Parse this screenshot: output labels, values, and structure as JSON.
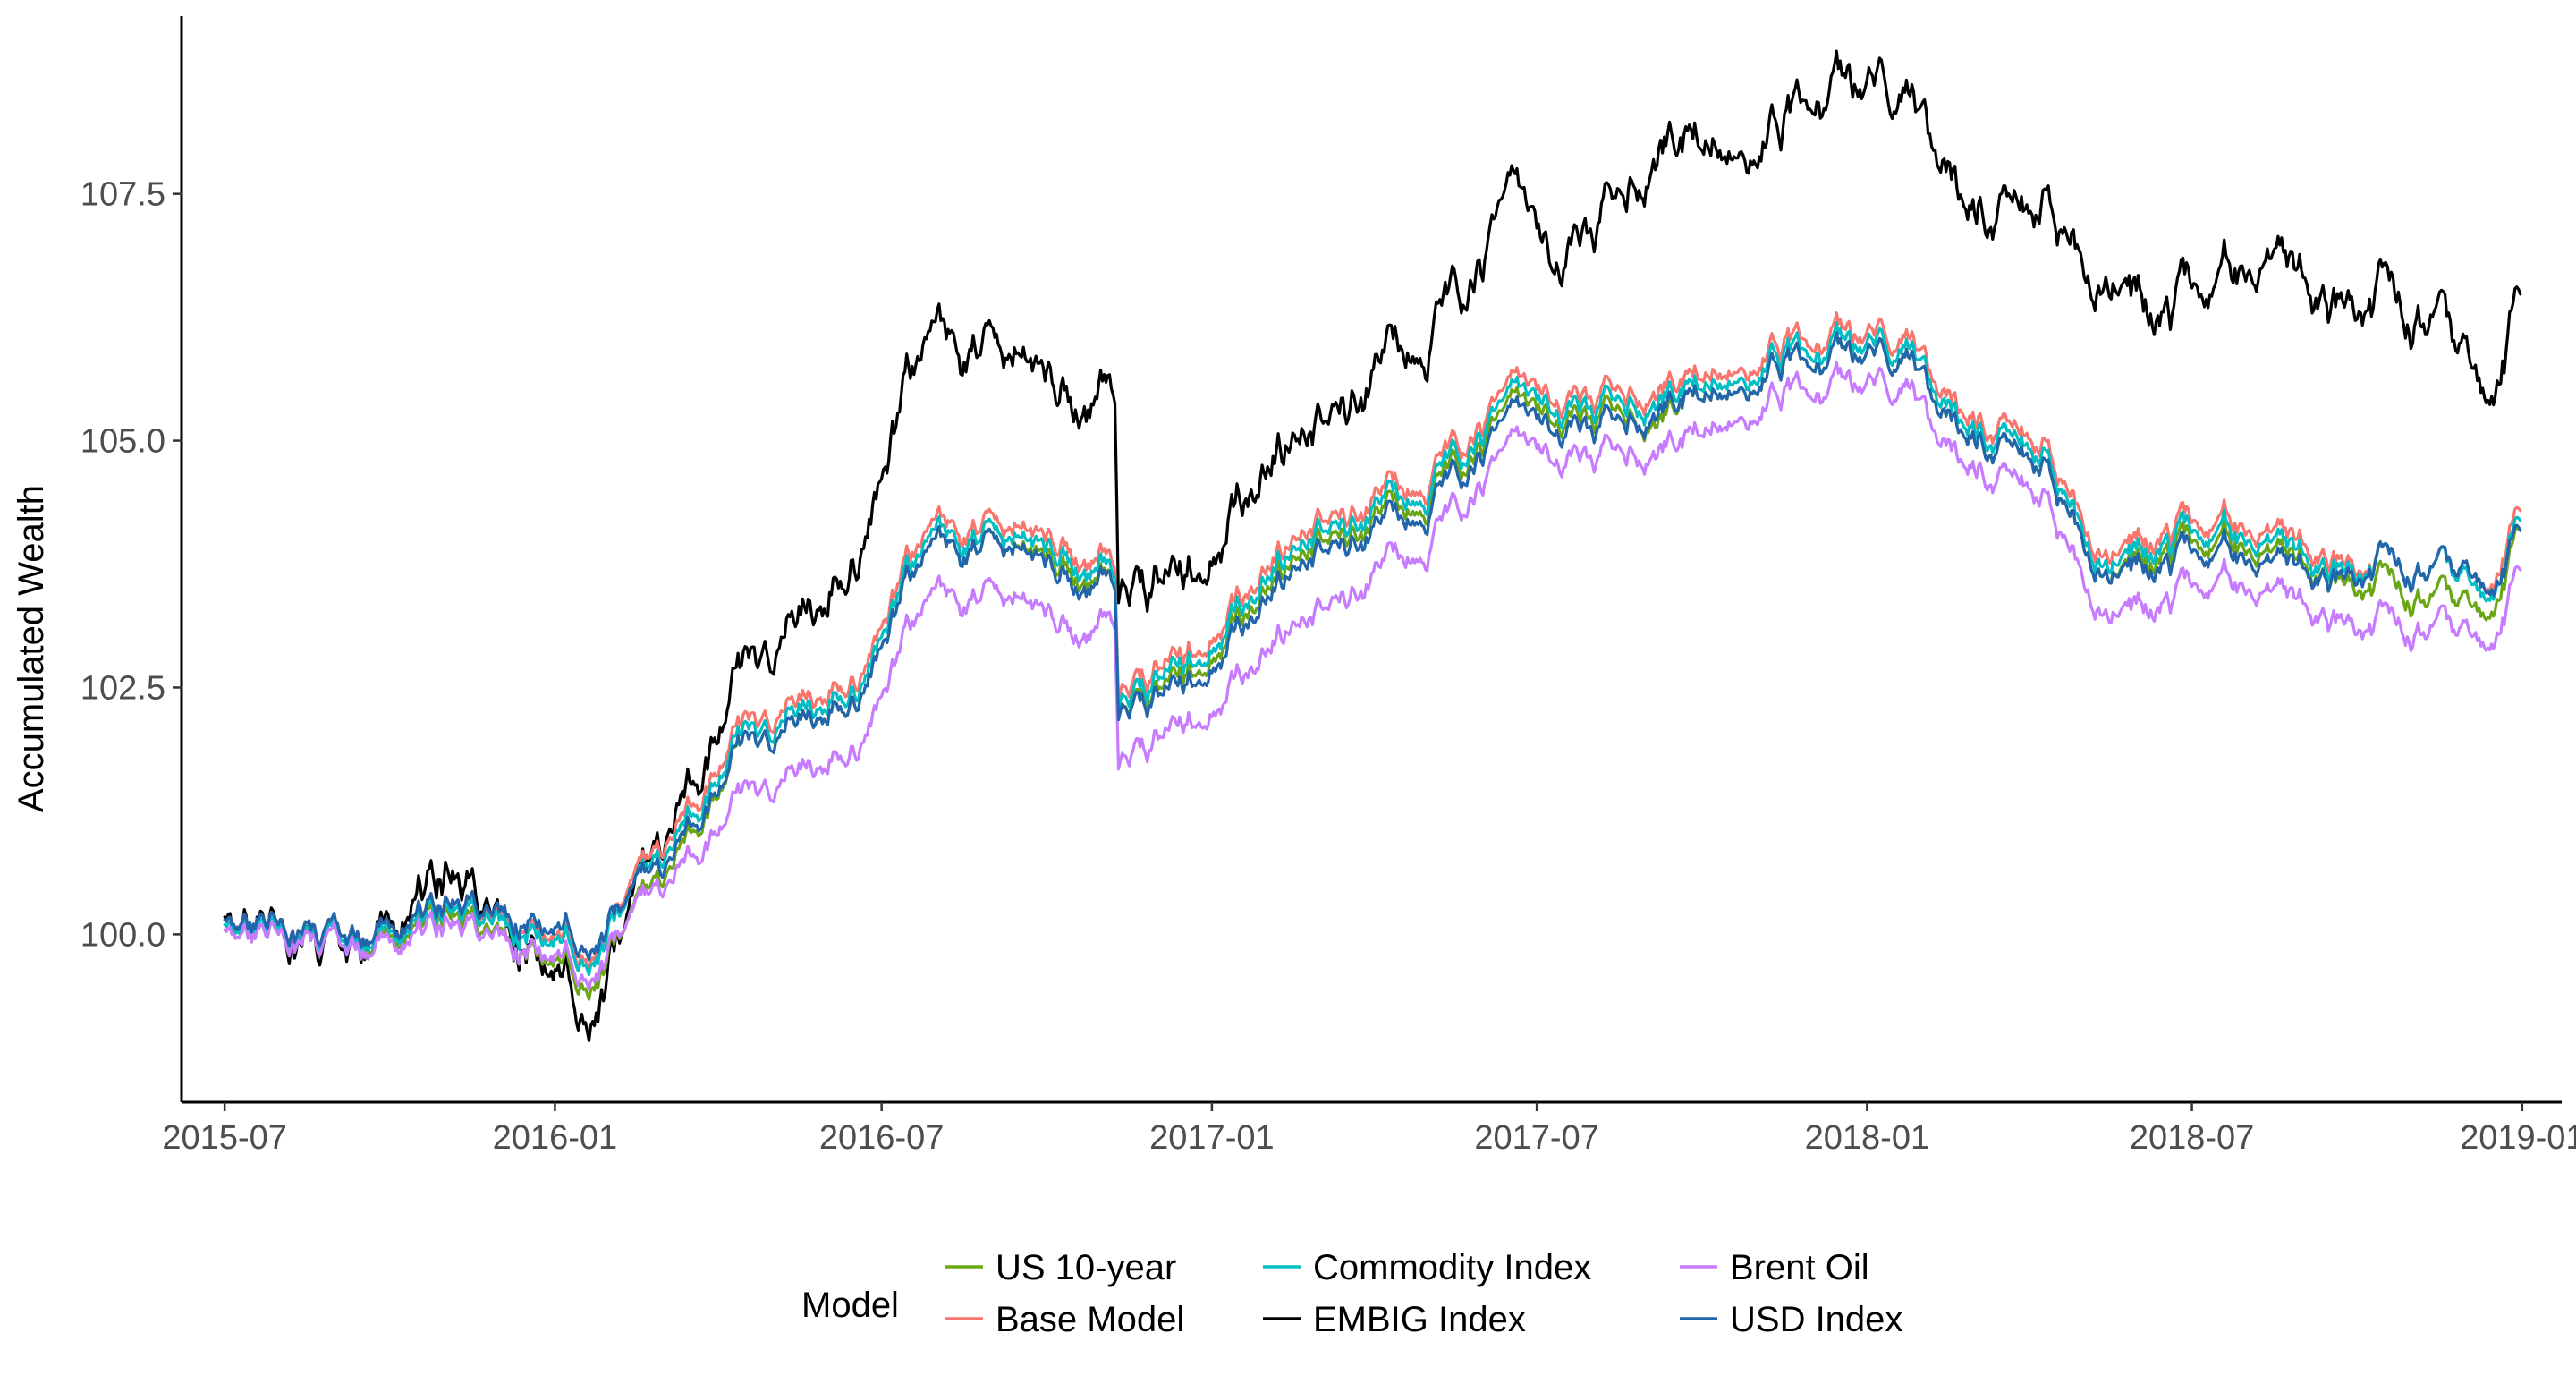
{
  "chart_data": {
    "type": "line",
    "title": "",
    "xlabel": "",
    "ylabel": "Accumulated Wealth",
    "x_start": "2015-07-01",
    "x_end": "2018-12-31",
    "x_ticks": [
      "2015-07",
      "2016-01",
      "2016-07",
      "2017-01",
      "2017-07",
      "2018-01",
      "2018-07",
      "2019-01"
    ],
    "x_tick_dates": [
      "2015-07-01",
      "2016-01-01",
      "2016-07-01",
      "2017-01-01",
      "2017-07-01",
      "2018-01-01",
      "2018-07-01",
      "2019-01-01"
    ],
    "xlim": [
      "2015-06-07",
      "2019-01-23"
    ],
    "y_ticks": [
      100.0,
      102.5,
      105.0,
      107.5
    ],
    "y_tick_labels": [
      "100.0",
      "102.5",
      "105.0",
      "107.5"
    ],
    "ylim": [
      98.3,
      109.3
    ],
    "grid": false,
    "legend": {
      "title": "Model",
      "placement": "bottom",
      "entries": [
        "US 10-year",
        "Base Model",
        "Commodity Index",
        "EMBIG Index",
        "Brent Oil",
        "USD Index"
      ]
    },
    "key_dates": [
      "2015-07-01",
      "2015-09-01",
      "2015-11-01",
      "2016-01-20",
      "2016-03-01",
      "2016-04-15",
      "2016-06-01",
      "2016-06-20",
      "2016-07-15",
      "2016-08-10",
      "2016-09-10",
      "2016-10-15",
      "2016-11-08",
      "2016-11-10",
      "2016-12-15",
      "2017-01-20",
      "2017-03-01",
      "2017-04-15",
      "2017-06-01",
      "2017-06-15",
      "2017-07-10",
      "2017-08-15",
      "2017-09-08",
      "2017-09-20",
      "2017-10-20",
      "2017-11-15",
      "2017-12-01",
      "2018-01-10",
      "2018-01-26",
      "2018-02-10",
      "2018-03-01",
      "2018-04-01",
      "2018-05-15",
      "2018-06-15",
      "2018-07-15",
      "2018-08-15",
      "2018-09-15",
      "2018-10-15",
      "2018-11-15",
      "2018-12-10",
      "2018-12-31"
    ],
    "series": [
      {
        "name": "US 10-year",
        "color": "#6aa513",
        "values": [
          100.0,
          99.8,
          100.2,
          99.7,
          100.5,
          101.8,
          102.3,
          102.5,
          103.5,
          103.8,
          104.0,
          103.8,
          103.5,
          102.2,
          102.6,
          103.3,
          104.0,
          104.3,
          104.9,
          105.0,
          105.1,
          105.2,
          105.3,
          105.5,
          105.7,
          105.9,
          105.7,
          105.8,
          105.9,
          105.1,
          105.0,
          105.0,
          103.7,
          103.8,
          103.9,
          103.9,
          103.6,
          103.5,
          103.4,
          103.3,
          104.1
        ]
      },
      {
        "name": "Base Model",
        "color": "#f8766d",
        "values": [
          100.1,
          99.9,
          100.3,
          100.0,
          100.8,
          102.0,
          102.5,
          102.7,
          103.7,
          104.0,
          104.2,
          104.0,
          103.7,
          102.4,
          102.8,
          103.5,
          104.2,
          104.5,
          105.1,
          105.2,
          105.3,
          105.4,
          105.6,
          105.7,
          105.9,
          106.1,
          105.9,
          106.0,
          106.1,
          105.3,
          105.2,
          105.2,
          103.9,
          104.0,
          104.1,
          104.1,
          103.8,
          103.7,
          103.7,
          103.6,
          104.3
        ]
      },
      {
        "name": "Commodity Index",
        "color": "#00bfc4",
        "values": [
          100.05,
          99.85,
          100.25,
          99.95,
          100.7,
          101.9,
          102.4,
          102.6,
          103.6,
          103.9,
          104.1,
          103.9,
          103.6,
          102.3,
          102.7,
          103.4,
          104.1,
          104.4,
          105.0,
          105.1,
          105.2,
          105.3,
          105.5,
          105.6,
          105.8,
          106.0,
          105.8,
          105.9,
          106.0,
          105.2,
          105.1,
          105.1,
          103.8,
          103.9,
          104.0,
          104.0,
          103.7,
          103.7,
          103.7,
          103.5,
          104.2
        ]
      },
      {
        "name": "EMBIG Index",
        "color": "#000000",
        "values": [
          100.1,
          99.7,
          100.6,
          99.5,
          100.8,
          102.5,
          103.5,
          104.0,
          105.5,
          105.8,
          106.0,
          105.6,
          105.4,
          103.4,
          103.6,
          104.5,
          105.2,
          105.9,
          106.7,
          107.0,
          106.6,
          107.3,
          108.1,
          108.2,
          108.2,
          108.4,
          108.3,
          108.5,
          108.6,
          107.5,
          107.3,
          107.6,
          106.7,
          106.2,
          106.5,
          106.9,
          106.4,
          106.4,
          106.2,
          105.6,
          106.5
        ]
      },
      {
        "name": "Brent Oil",
        "color": "#c77cff",
        "values": [
          100.0,
          99.8,
          100.1,
          99.8,
          100.4,
          101.3,
          101.8,
          102.0,
          103.0,
          103.3,
          103.5,
          103.2,
          103.1,
          101.7,
          102.1,
          102.7,
          103.3,
          103.8,
          104.5,
          104.6,
          104.7,
          104.8,
          105.0,
          105.1,
          105.4,
          105.6,
          105.4,
          105.5,
          105.6,
          104.8,
          104.7,
          104.7,
          103.3,
          103.3,
          103.5,
          103.5,
          103.2,
          103.1,
          103.1,
          103.0,
          103.7
        ]
      },
      {
        "name": "USD Index",
        "color": "#2166ac",
        "values": [
          100.1,
          99.9,
          100.3,
          100.1,
          100.6,
          101.8,
          102.3,
          102.5,
          103.5,
          103.8,
          104.0,
          103.7,
          103.5,
          102.2,
          102.5,
          103.2,
          103.9,
          104.2,
          104.8,
          104.9,
          105.0,
          105.1,
          105.4,
          105.5,
          105.7,
          105.9,
          105.7,
          105.8,
          105.9,
          105.1,
          105.0,
          105.0,
          103.7,
          103.7,
          103.8,
          103.8,
          103.6,
          103.7,
          103.7,
          103.6,
          104.1
        ]
      }
    ]
  }
}
